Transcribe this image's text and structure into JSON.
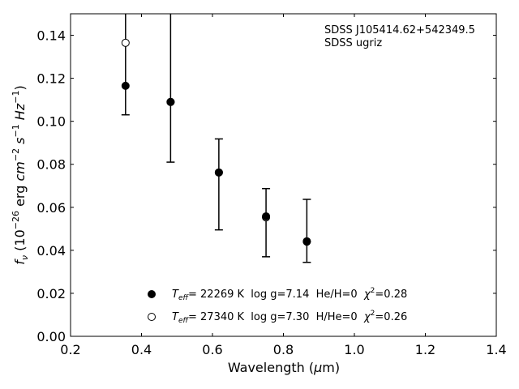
{
  "chart_data": {
    "type": "scatter",
    "xlabel_main": "Wavelength (",
    "xlabel_mu": "μ",
    "xlabel_end": "m)",
    "ylabel_pre": "f",
    "ylabel_sub": "ν",
    "ylabel_mid1": " (10",
    "ylabel_exp1": "−26",
    "ylabel_mid2": " erg ",
    "ylabel_cm": "cm",
    "ylabel_exp2": "−2",
    "ylabel_s": " s",
    "ylabel_exp3": "−1",
    "ylabel_hz": " Hz",
    "ylabel_exp4": "−1",
    "ylabel_close": ")",
    "xlim": [
      0.2,
      1.4
    ],
    "ylim": [
      0.0,
      0.15
    ],
    "x_ticks": [
      0.2,
      0.4,
      0.6,
      0.8,
      1.0,
      1.2,
      1.4
    ],
    "x_tick_labels": [
      "0.2",
      "0.4",
      "0.6",
      "0.8",
      "1.0",
      "1.2",
      "1.4"
    ],
    "y_ticks": [
      0.0,
      0.02,
      0.04,
      0.06,
      0.08,
      0.1,
      0.12,
      0.14
    ],
    "y_tick_labels": [
      "0.00",
      "0.02",
      "0.04",
      "0.06",
      "0.08",
      "0.10",
      "0.12",
      "0.14"
    ],
    "grid": false,
    "annotation_lines": [
      "SDSS J105414.62+542349.5",
      "SDSS ugriz"
    ],
    "observed": [
      {
        "x": 0.355,
        "y": 0.1165,
        "yerr_low": 0.103,
        "yerr_high": 0.15
      },
      {
        "x": 0.482,
        "y": 0.109,
        "yerr_low": 0.081,
        "yerr_high": 0.15
      },
      {
        "x": 0.618,
        "y": 0.0762,
        "yerr_low": 0.0495,
        "yerr_high": 0.0918
      },
      {
        "x": 0.751,
        "y": 0.0558,
        "yerr_low": 0.037,
        "yerr_high": 0.0687
      },
      {
        "x": 0.866,
        "y": 0.0442,
        "yerr_low": 0.0344,
        "yerr_high": 0.0637
      }
    ],
    "series": [
      {
        "marker": "filled",
        "color": "#000000",
        "points": [
          {
            "x": 0.355,
            "y": 0.1165
          },
          {
            "x": 0.482,
            "y": 0.109
          },
          {
            "x": 0.618,
            "y": 0.0762
          },
          {
            "x": 0.751,
            "y": 0.0558
          },
          {
            "x": 0.866,
            "y": 0.0442
          }
        ]
      },
      {
        "marker": "open",
        "color": "#000000",
        "points": [
          {
            "x": 0.355,
            "y": 0.1365
          },
          {
            "x": 0.482,
            "y": 0.109
          },
          {
            "x": 0.618,
            "y": 0.0762
          },
          {
            "x": 0.751,
            "y": 0.0553
          },
          {
            "x": 0.866,
            "y": 0.044
          }
        ]
      }
    ],
    "legend": {
      "placement": "lower-center",
      "entries": [
        {
          "marker": "filled",
          "t_sym": "T",
          "t_sub": "eff",
          "text1": "= 22269 K  log g=7.14  He/H=0  ",
          "chi": "χ",
          "chi_sup": "2",
          "text2": "=0.28"
        },
        {
          "marker": "open",
          "t_sym": "T",
          "t_sub": "eff",
          "text1": "= 27340 K  log g=7.30  H/He=0  ",
          "chi": "χ",
          "chi_sup": "2",
          "text2": "=0.26"
        }
      ]
    }
  }
}
